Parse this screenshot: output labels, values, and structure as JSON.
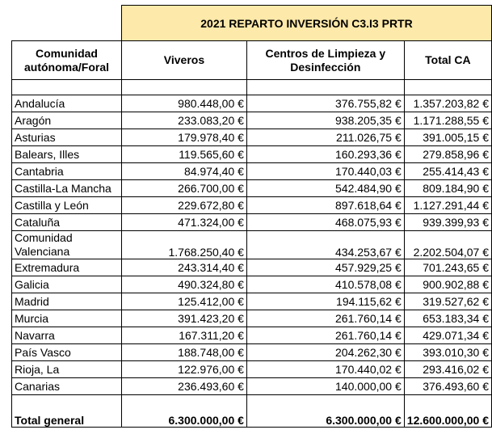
{
  "title": "2021 REPARTO INVERSIÓN C3.I3 PRTR",
  "headers": {
    "region": "Comunidad autónoma/Foral",
    "viveros": "Viveros",
    "centros": "Centros de Limpieza y Desinfección",
    "total": "Total CA"
  },
  "rows": [
    {
      "name": "Andalucía",
      "viveros": "980.448,00 €",
      "centros": "376.755,82 €",
      "total": "1.357.203,82 €"
    },
    {
      "name": "Aragón",
      "viveros": "233.083,20 €",
      "centros": "938.205,35 €",
      "total": "1.171.288,55 €"
    },
    {
      "name": "Asturias",
      "viveros": "179.978,40 €",
      "centros": "211.026,75 €",
      "total": "391.005,15 €"
    },
    {
      "name": "Balears, Illes",
      "viveros": "119.565,60 €",
      "centros": "160.293,36 €",
      "total": "279.858,96 €"
    },
    {
      "name": "Cantabria",
      "viveros": "84.974,40 €",
      "centros": "170.440,03 €",
      "total": "255.414,43 €"
    },
    {
      "name": "Castilla-La Mancha",
      "viveros": "266.700,00 €",
      "centros": "542.484,90 €",
      "total": "809.184,90 €"
    },
    {
      "name": "Castilla y León",
      "viveros": "229.672,80 €",
      "centros": "897.618,64 €",
      "total": "1.127.291,44 €"
    },
    {
      "name": "Cataluña",
      "viveros": "471.324,00 €",
      "centros": "468.075,93 €",
      "total": "939.399,93 €"
    },
    {
      "name": "Comunidad Valenciana",
      "viveros": "1.768.250,40 €",
      "centros": "434.253,67 €",
      "total": "2.202.504,07 €"
    },
    {
      "name": "Extremadura",
      "viveros": "243.314,40 €",
      "centros": "457.929,25 €",
      "total": "701.243,65 €"
    },
    {
      "name": "Galicia",
      "viveros": "490.324,80 €",
      "centros": "410.578,08 €",
      "total": "900.902,88 €"
    },
    {
      "name": "Madrid",
      "viveros": "125.412,00 €",
      "centros": "194.115,62 €",
      "total": "319.527,62 €"
    },
    {
      "name": "Murcia",
      "viveros": "391.423,20 €",
      "centros": "261.760,14 €",
      "total": "653.183,34 €"
    },
    {
      "name": "Navarra",
      "viveros": "167.311,20 €",
      "centros": "261.760,14 €",
      "total": "429.071,34 €"
    },
    {
      "name": "País Vasco",
      "viveros": "188.748,00 €",
      "centros": "204.262,30 €",
      "total": "393.010,30 €"
    },
    {
      "name": "Rioja, La",
      "viveros": "122.976,00 €",
      "centros": "170.440,02 €",
      "total": "293.416,02 €"
    },
    {
      "name": "Canarias",
      "viveros": "236.493,60 €",
      "centros": "140.000,00 €",
      "total": "376.493,60 €"
    }
  ],
  "total_row": {
    "name": "Total general",
    "viveros": "6.300.000,00 €",
    "centros": "6.300.000,00 €",
    "total": "12.600.000,00 €"
  }
}
